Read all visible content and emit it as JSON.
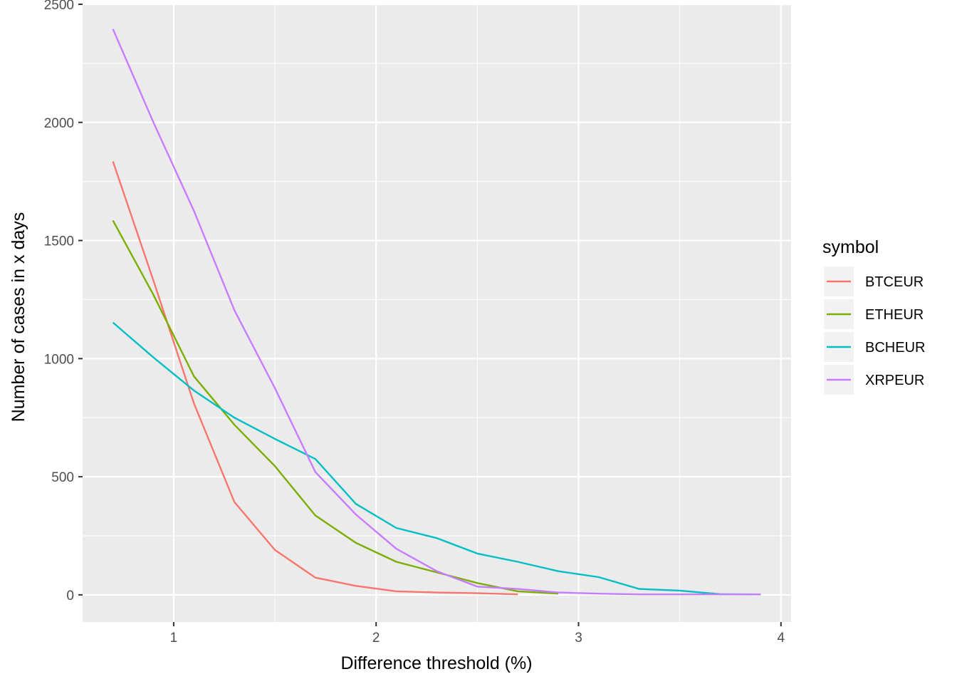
{
  "chart_data": {
    "type": "line",
    "xlabel": "Difference threshold (%)",
    "ylabel": "Number of cases in x days",
    "xlim": [
      0.55,
      4.05
    ],
    "ylim": [
      -115,
      2500
    ],
    "x_ticks": [
      1,
      2,
      3,
      4
    ],
    "x_tick_labels": [
      "1",
      "2",
      "3",
      "4"
    ],
    "y_ticks": [
      0,
      500,
      1000,
      1500,
      2000,
      2500
    ],
    "y_tick_labels": [
      "0",
      "500",
      "1000",
      "1500",
      "2000",
      "2500"
    ],
    "grid": true,
    "legend": {
      "title": "symbol",
      "position": "right"
    },
    "series": [
      {
        "name": "BTCEUR",
        "color": "#F8766D",
        "x": [
          0.7,
          0.9,
          1.1,
          1.3,
          1.5,
          1.7,
          1.9,
          2.1,
          2.3,
          2.5,
          2.7
        ],
        "y": [
          1835,
          1330,
          810,
          393,
          190,
          73,
          38,
          15,
          10,
          7,
          2
        ]
      },
      {
        "name": "ETHEUR",
        "color": "#7CAE00",
        "x": [
          0.7,
          0.9,
          1.1,
          1.3,
          1.5,
          1.7,
          1.9,
          2.1,
          2.3,
          2.5,
          2.7,
          2.9
        ],
        "y": [
          1585,
          1270,
          925,
          720,
          545,
          336,
          220,
          140,
          95,
          50,
          15,
          5
        ]
      },
      {
        "name": "BCHEUR",
        "color": "#00BFC4",
        "x": [
          0.7,
          0.9,
          1.1,
          1.3,
          1.5,
          1.7,
          1.9,
          2.1,
          2.3,
          2.5,
          2.7,
          2.9,
          3.1,
          3.3,
          3.5,
          3.7,
          3.9
        ],
        "y": [
          1153,
          1005,
          865,
          750,
          660,
          575,
          385,
          283,
          240,
          175,
          140,
          100,
          75,
          25,
          18,
          3,
          2
        ]
      },
      {
        "name": "XRPEUR",
        "color": "#C77CFF",
        "x": [
          0.7,
          0.9,
          1.1,
          1.3,
          1.5,
          1.7,
          1.9,
          2.1,
          2.3,
          2.5,
          2.7,
          2.9,
          3.1,
          3.3,
          3.5,
          3.7,
          3.9
        ],
        "y": [
          2395,
          2000,
          1625,
          1205,
          875,
          520,
          340,
          195,
          100,
          35,
          25,
          10,
          5,
          2,
          2,
          2,
          2
        ]
      }
    ]
  }
}
